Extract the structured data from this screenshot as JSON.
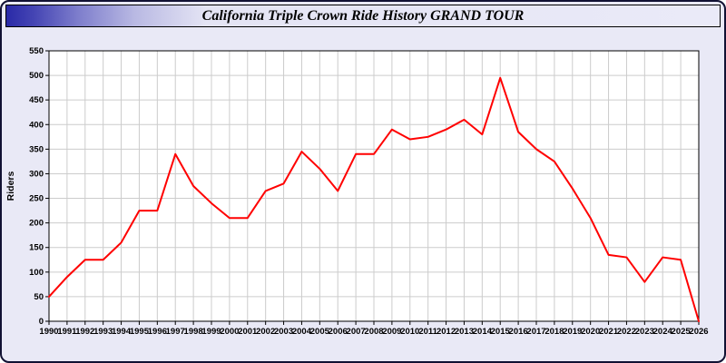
{
  "window": {
    "title": "California Triple Crown Ride History GRAND TOUR"
  },
  "chart_data": {
    "type": "line",
    "title": "California Triple Crown Ride History GRAND TOUR",
    "xlabel": "",
    "ylabel": "Riders",
    "ylim": [
      0,
      550
    ],
    "ytick_step": 50,
    "grid": true,
    "legend": "none",
    "line_color": "#ff0000",
    "background_color": "#e9e9f6",
    "plot_background": "#ffffff",
    "grid_color": "#cccccc",
    "x": [
      1990,
      1991,
      1992,
      1993,
      1994,
      1995,
      1996,
      1997,
      1998,
      1999,
      2000,
      2001,
      2002,
      2003,
      2004,
      2005,
      2006,
      2007,
      2008,
      2009,
      2010,
      2011,
      2012,
      2013,
      2014,
      2015,
      2016,
      2017,
      2018,
      2019,
      2020,
      2021,
      2022,
      2023,
      2024,
      2025,
      2026
    ],
    "series": [
      {
        "name": "Riders",
        "values": [
          50,
          90,
          125,
          125,
          160,
          225,
          225,
          340,
          275,
          240,
          210,
          210,
          265,
          280,
          345,
          310,
          265,
          340,
          340,
          390,
          370,
          375,
          390,
          410,
          380,
          495,
          385,
          350,
          325,
          270,
          210,
          135,
          130,
          80,
          130,
          125,
          0
        ]
      }
    ]
  }
}
